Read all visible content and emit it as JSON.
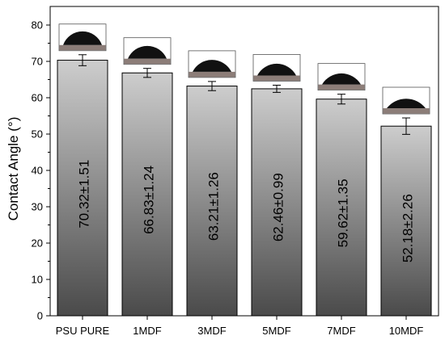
{
  "chart_data": {
    "type": "bar",
    "title": "",
    "xlabel": "",
    "ylabel": "Contact Angle (°)",
    "ylim": [
      0,
      85
    ],
    "yticks": [
      0,
      10,
      20,
      30,
      40,
      50,
      60,
      70,
      80
    ],
    "grid": false,
    "legend": "none",
    "categories": [
      "PSU PURE",
      "1MDF",
      "3MDF",
      "5MDF",
      "7MDF",
      "10MDF"
    ],
    "values": [
      70.32,
      66.83,
      63.21,
      62.46,
      59.62,
      52.18
    ],
    "errors": [
      1.51,
      1.24,
      1.26,
      0.99,
      1.35,
      2.26
    ],
    "data_labels": [
      "70.32±1.51",
      "66.83±1.24",
      "63.21±1.26",
      "62.46±0.99",
      "59.62±1.35",
      "52.18±2.26"
    ],
    "droplet_images": [
      {
        "category": "PSU PURE",
        "contact_angle": 70.32
      },
      {
        "category": "1MDF",
        "contact_angle": 66.83
      },
      {
        "category": "3MDF",
        "contact_angle": 63.21
      },
      {
        "category": "5MDF",
        "contact_angle": 62.46
      },
      {
        "category": "7MDF",
        "contact_angle": 59.62
      },
      {
        "category": "10MDF",
        "contact_angle": 52.18
      }
    ],
    "colors": {
      "bar_top": "#cdcdcd",
      "bar_bottom": "#4a4a4a",
      "droplet": "#111111"
    }
  }
}
